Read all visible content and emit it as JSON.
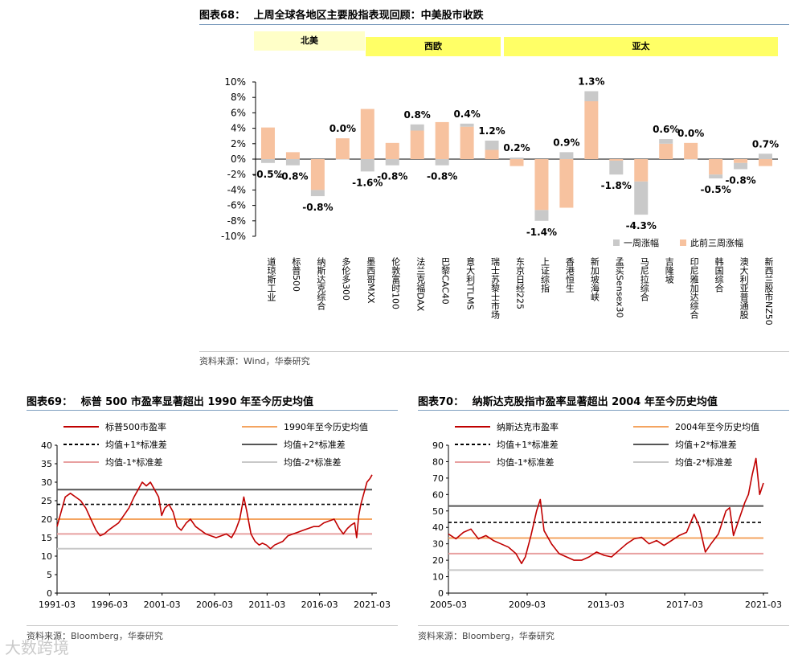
{
  "fig68": {
    "title_prefix": "图表68：",
    "title": "上周全球各地区主要股指表现回顾：中美股市收跌",
    "source": "资料来源：Wind，华泰研究",
    "regions": [
      "北美",
      "西欧",
      "亚太"
    ],
    "colors": {
      "week": "#c9c9c9",
      "prior": "#f7c29f",
      "region_light": "#ffffc8",
      "region": "#ffff66"
    }
  },
  "fig69": {
    "title_prefix": "图表69：",
    "title": "标普 500 市盈率显著超出 1990 年至今历史均值",
    "source": "资料来源：Bloomberg，华泰研究"
  },
  "fig70": {
    "title_prefix": "图表70：",
    "title": "纳斯达克股指市盈率显著超出 2004 年至今历史均值",
    "source": "资料来源：Bloomberg，华泰研究"
  },
  "watermark": "大数跨境",
  "chart_data": [
    {
      "id": "fig68",
      "type": "bar",
      "stacked": true,
      "categories": [
        "道琼斯工业",
        "标普500",
        "纳斯达克综合",
        "多伦多300",
        "墨西哥MXX",
        "伦敦富时100",
        "法兰克福DAX",
        "巴黎CAC40",
        "意大利ITLMS",
        "瑞士苏黎士市场",
        "东京日经225",
        "上证综指",
        "香港恒生",
        "新加坡海峡",
        "孟买Sensex30",
        "马尼拉综合",
        "吉隆坡",
        "印尼雅加达综合",
        "韩国综合",
        "澳大利亚普通股",
        "新西兰股市NZ50"
      ],
      "series": [
        {
          "name": "一周涨幅",
          "values": [
            -0.5,
            -0.8,
            -0.8,
            0.0,
            -1.6,
            -0.8,
            0.8,
            -0.8,
            0.4,
            1.2,
            0.2,
            -1.4,
            0.9,
            1.3,
            -1.8,
            -4.3,
            0.6,
            0.0,
            -0.5,
            -0.8,
            0.7
          ]
        },
        {
          "name": "此前三周涨幅",
          "values": [
            4.1,
            0.9,
            -4.0,
            2.7,
            6.5,
            2.1,
            3.7,
            4.8,
            4.2,
            1.2,
            -0.9,
            -6.6,
            -6.3,
            7.5,
            -0.2,
            -2.9,
            2.0,
            2.1,
            -2.0,
            -0.5,
            -0.9
          ]
        }
      ],
      "data_labels": [
        "-0.5%",
        "-0.8%",
        "-0.8%",
        "0.0%",
        "-1.6%",
        "-0.8%",
        "0.8%",
        "-0.8%",
        "0.4%",
        "1.2%",
        "0.2%",
        "-1.4%",
        "0.9%",
        "1.3%",
        "-1.8%",
        "-4.3%",
        "0.6%",
        "0.0%",
        "-0.5%",
        "-0.8%",
        "0.7%"
      ],
      "ylim": [
        -10,
        10
      ],
      "yticks": [
        "-10%",
        "-8%",
        "-6%",
        "-4%",
        "-2%",
        "0%",
        "2%",
        "4%",
        "6%",
        "8%",
        "10%"
      ],
      "legend": "bottom-right"
    },
    {
      "id": "fig69",
      "type": "line",
      "xticks": [
        "1991-03",
        "1996-03",
        "2001-03",
        "2006-03",
        "2011-03",
        "2016-03",
        "2021-03"
      ],
      "x_range": [
        1991.0,
        2021.7
      ],
      "ylim": [
        0,
        40
      ],
      "yticks": [
        "0",
        "5",
        "10",
        "15",
        "20",
        "25",
        "30",
        "35",
        "40"
      ],
      "series": [
        {
          "name": "标普500市盈率",
          "color": "#c00000",
          "points": [
            [
              1991.0,
              18
            ],
            [
              1991.4,
              22
            ],
            [
              1991.8,
              26
            ],
            [
              1992.3,
              27
            ],
            [
              1992.8,
              26
            ],
            [
              1993.3,
              25
            ],
            [
              1993.8,
              23
            ],
            [
              1994.3,
              20
            ],
            [
              1994.8,
              17
            ],
            [
              1995.2,
              15.5
            ],
            [
              1995.6,
              16
            ],
            [
              1996.0,
              17
            ],
            [
              1996.5,
              18
            ],
            [
              1997.0,
              19
            ],
            [
              1997.5,
              21
            ],
            [
              1998.0,
              23
            ],
            [
              1998.5,
              26
            ],
            [
              1998.9,
              28
            ],
            [
              1999.3,
              30
            ],
            [
              1999.7,
              29
            ],
            [
              2000.1,
              30
            ],
            [
              2000.5,
              28
            ],
            [
              2000.9,
              26
            ],
            [
              2001.2,
              21
            ],
            [
              2001.5,
              23
            ],
            [
              2001.9,
              24
            ],
            [
              2002.3,
              22
            ],
            [
              2002.7,
              18
            ],
            [
              2003.1,
              17
            ],
            [
              2003.6,
              19
            ],
            [
              2004.0,
              20
            ],
            [
              2004.5,
              18
            ],
            [
              2005.0,
              17
            ],
            [
              2005.5,
              16
            ],
            [
              2006.0,
              15.5
            ],
            [
              2006.5,
              15
            ],
            [
              2007.0,
              15.5
            ],
            [
              2007.5,
              16
            ],
            [
              2008.0,
              15
            ],
            [
              2008.4,
              17
            ],
            [
              2008.8,
              20
            ],
            [
              2009.2,
              26
            ],
            [
              2009.5,
              22
            ],
            [
              2009.9,
              16
            ],
            [
              2010.3,
              14
            ],
            [
              2010.7,
              13
            ],
            [
              2011.0,
              13.5
            ],
            [
              2011.4,
              13
            ],
            [
              2011.8,
              12
            ],
            [
              2012.2,
              13
            ],
            [
              2012.6,
              13.5
            ],
            [
              2013.0,
              14
            ],
            [
              2013.5,
              15.5
            ],
            [
              2014.0,
              16
            ],
            [
              2014.5,
              16.5
            ],
            [
              2015.0,
              17
            ],
            [
              2015.5,
              17.5
            ],
            [
              2016.0,
              18
            ],
            [
              2016.5,
              18
            ],
            [
              2017.0,
              19
            ],
            [
              2017.5,
              19.5
            ],
            [
              2018.0,
              20
            ],
            [
              2018.5,
              17.5
            ],
            [
              2018.9,
              16
            ],
            [
              2019.3,
              17.5
            ],
            [
              2019.7,
              18.5
            ],
            [
              2020.0,
              19
            ],
            [
              2020.2,
              15
            ],
            [
              2020.4,
              21
            ],
            [
              2020.6,
              24
            ],
            [
              2020.9,
              27
            ],
            [
              2021.2,
              30
            ],
            [
              2021.5,
              31
            ],
            [
              2021.7,
              32
            ]
          ]
        },
        {
          "name": "1990年至今历史均值",
          "color": "#f4a460",
          "constant": 20.0
        },
        {
          "name": "均值+1*标准差",
          "color": "#000000",
          "dash": true,
          "constant": 24.0
        },
        {
          "name": "均值+2*标准差",
          "color": "#555555",
          "constant": 28.0
        },
        {
          "name": "均值-1*标准差",
          "color": "#e8a0a0",
          "constant": 16.0
        },
        {
          "name": "均值-2*标准差",
          "color": "#c8c8c8",
          "constant": 12.0
        }
      ],
      "legend": "top"
    },
    {
      "id": "fig70",
      "type": "line",
      "xticks": [
        "2005-03",
        "2009-03",
        "2013-03",
        "2017-03",
        "2021-03"
      ],
      "x_range": [
        2005.0,
        2021.8
      ],
      "ylim": [
        0,
        90
      ],
      "yticks": [
        "0",
        "10",
        "20",
        "30",
        "40",
        "50",
        "60",
        "70",
        "80",
        "90"
      ],
      "series": [
        {
          "name": "纳斯达克市盈率",
          "color": "#c00000",
          "points": [
            [
              2005.0,
              36
            ],
            [
              2005.4,
              33
            ],
            [
              2005.8,
              37
            ],
            [
              2006.2,
              39
            ],
            [
              2006.6,
              33
            ],
            [
              2007.0,
              35
            ],
            [
              2007.4,
              32
            ],
            [
              2007.8,
              30
            ],
            [
              2008.2,
              28
            ],
            [
              2008.6,
              24
            ],
            [
              2008.9,
              18
            ],
            [
              2009.1,
              22
            ],
            [
              2009.4,
              35
            ],
            [
              2009.7,
              50
            ],
            [
              2009.9,
              57
            ],
            [
              2010.1,
              38
            ],
            [
              2010.5,
              30
            ],
            [
              2010.9,
              24
            ],
            [
              2011.3,
              22
            ],
            [
              2011.7,
              20
            ],
            [
              2012.1,
              20
            ],
            [
              2012.5,
              22
            ],
            [
              2012.9,
              25
            ],
            [
              2013.3,
              23
            ],
            [
              2013.7,
              22
            ],
            [
              2014.1,
              26
            ],
            [
              2014.5,
              30
            ],
            [
              2014.9,
              33
            ],
            [
              2015.3,
              34
            ],
            [
              2015.7,
              30
            ],
            [
              2016.1,
              32
            ],
            [
              2016.5,
              29
            ],
            [
              2016.9,
              32
            ],
            [
              2017.3,
              35
            ],
            [
              2017.7,
              37
            ],
            [
              2018.1,
              48
            ],
            [
              2018.4,
              40
            ],
            [
              2018.7,
              25
            ],
            [
              2019.0,
              30
            ],
            [
              2019.4,
              36
            ],
            [
              2019.8,
              50
            ],
            [
              2020.0,
              52
            ],
            [
              2020.2,
              35
            ],
            [
              2020.5,
              45
            ],
            [
              2020.8,
              55
            ],
            [
              2021.0,
              60
            ],
            [
              2021.2,
              72
            ],
            [
              2021.4,
              82
            ],
            [
              2021.6,
              60
            ],
            [
              2021.8,
              67
            ]
          ]
        },
        {
          "name": "2004年至今历史均值",
          "color": "#f4a460",
          "constant": 33.5
        },
        {
          "name": "均值+1*标准差",
          "color": "#000000",
          "dash": true,
          "constant": 43.0
        },
        {
          "name": "均值+2*标准差",
          "color": "#555555",
          "constant": 53.0
        },
        {
          "name": "均值-1*标准差",
          "color": "#e8a0a0",
          "constant": 24.0
        },
        {
          "name": "均值-2*标准差",
          "color": "#c8c8c8",
          "constant": 14.0
        }
      ],
      "legend": "top"
    }
  ]
}
